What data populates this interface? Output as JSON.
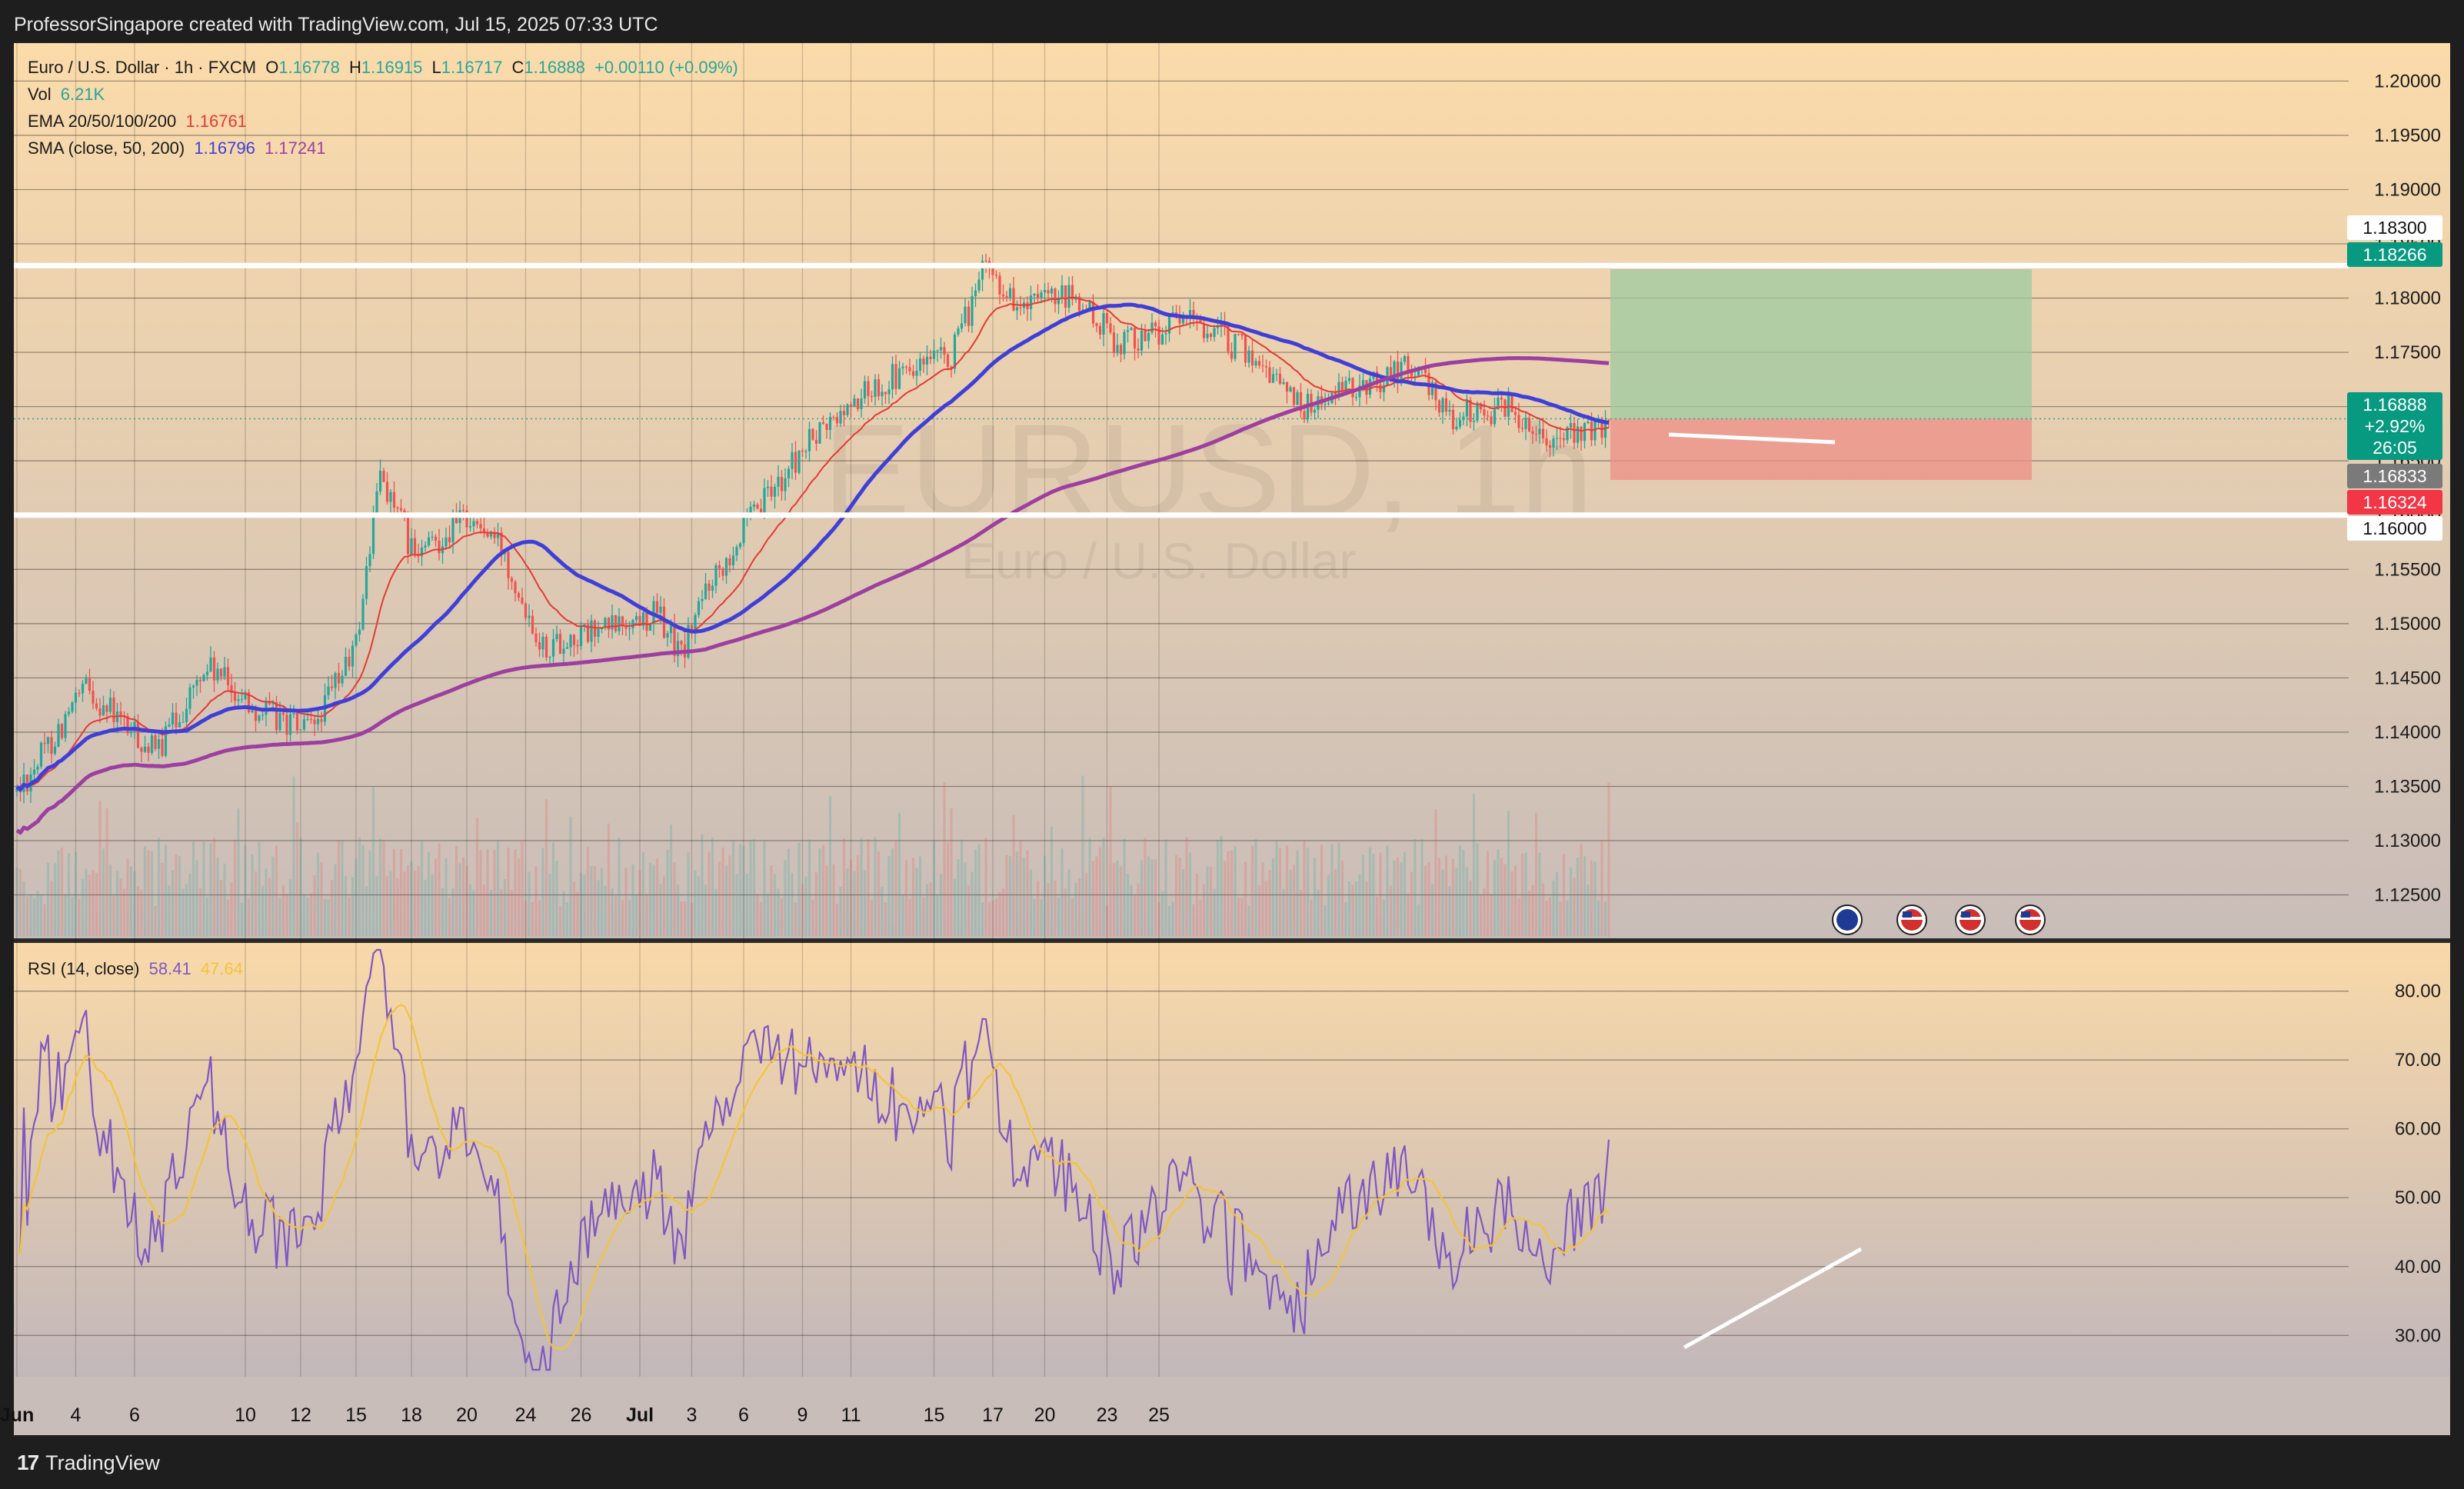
{
  "header": {
    "credit": "ProfessorSingapore created with TradingView.com, Jul 15, 2025 07:33 UTC"
  },
  "footer": {
    "brand": "TradingView"
  },
  "legend": {
    "symbol": "Euro / U.S. Dollar · 1h · FXCM",
    "o_label": "O",
    "o_value": "1.16778",
    "h_label": "H",
    "h_value": "1.16915",
    "l_label": "L",
    "l_value": "1.16717",
    "c_label": "C",
    "c_value": "1.16888",
    "change": "+0.00110 (+0.09%)",
    "vol_label": "Vol",
    "vol_value": "6.21K",
    "ema_label": "EMA 20/50/100/200",
    "ema_value": "1.16761",
    "sma_label": "SMA (close, 50, 200)",
    "sma_value1": "1.16796",
    "sma_value2": "1.17241",
    "rsi_label": "RSI (14, close)",
    "rsi_value": "58.41",
    "rsi_ma_value": "47.64"
  },
  "watermark": {
    "ticker": "EURUSD, 1h",
    "name": "Euro / U.S. Dollar"
  },
  "price_labels": {
    "level_upper": "1.18300",
    "tp": "1.18266",
    "last_price": "1.16888",
    "last_change": "+2.92%",
    "countdown": "26:05",
    "level_mid": "1.16833",
    "sl": "1.16324",
    "level_lower": "1.16000"
  },
  "colors": {
    "up": "#26a69a",
    "down": "#ef5350",
    "ema20": "#e53935",
    "sma50": "#3f3fd8",
    "sma200": "#9c3fa0",
    "rsi": "#7e57c2",
    "rsi_ma": "#f2c43b",
    "tp_box": "#9ecba0",
    "sl_box": "#ee8f86",
    "level_line": "#ffffff"
  },
  "icons": [
    "eu-flag-icon",
    "us-flag-icon",
    "us-flag-icon",
    "us-flag-icon"
  ],
  "chart_data": [
    {
      "type": "candlestick",
      "title": "Euro / U.S. Dollar · 1h · FXCM",
      "x_ticks": [
        "Jun",
        "4",
        "6",
        "10",
        "12",
        "15",
        "18",
        "20",
        "24",
        "26",
        "Jul",
        "3",
        "6",
        "9",
        "11",
        "15",
        "17",
        "20",
        "23",
        "25"
      ],
      "y_ticks": [
        "1.20000",
        "1.19500",
        "1.19000",
        "1.18500",
        "1.18000",
        "1.17500",
        "1.17000",
        "1.16500",
        "1.16000",
        "1.15500",
        "1.15000",
        "1.14500",
        "1.14000",
        "1.13500",
        "1.13000",
        "1.12500"
      ],
      "ylim": [
        1.121,
        1.2035
      ],
      "price_path": [
        [
          1.1345,
          0
        ],
        [
          1.144,
          20
        ],
        [
          1.138,
          40
        ],
        [
          1.146,
          55
        ],
        [
          1.142,
          70
        ],
        [
          1.14,
          85
        ],
        [
          1.148,
          98
        ],
        [
          1.164,
          105
        ],
        [
          1.156,
          115
        ],
        [
          1.16,
          130
        ],
        [
          1.157,
          140
        ],
        [
          1.148,
          152
        ],
        [
          1.149,
          165
        ],
        [
          1.15,
          175
        ],
        [
          1.151,
          185
        ],
        [
          1.147,
          192
        ],
        [
          1.154,
          200
        ],
        [
          1.163,
          220
        ],
        [
          1.167,
          230
        ],
        [
          1.172,
          248
        ],
        [
          1.1745,
          270
        ],
        [
          1.183,
          280
        ],
        [
          1.179,
          290
        ],
        [
          1.18,
          305
        ],
        [
          1.176,
          318
        ],
        [
          1.178,
          340
        ],
        [
          1.174,
          360
        ],
        [
          1.17,
          372
        ],
        [
          1.172,
          390
        ],
        [
          1.174,
          402
        ],
        [
          1.169,
          415
        ],
        [
          1.17,
          430
        ],
        [
          1.167,
          445
        ],
        [
          1.168,
          460
        ]
      ],
      "horizontal_levels": [
        1.183,
        1.16
      ],
      "position": {
        "entry": 1.16888,
        "target": 1.18266,
        "stop": 1.16324
      }
    },
    {
      "type": "line",
      "title": "RSI (14, close)",
      "y_ticks": [
        "80.00",
        "70.00",
        "60.00",
        "50.00",
        "40.00",
        "30.00"
      ],
      "ylim": [
        24,
        87
      ],
      "rsi_last": 58.41,
      "rsi_ma_last": 47.64
    }
  ]
}
